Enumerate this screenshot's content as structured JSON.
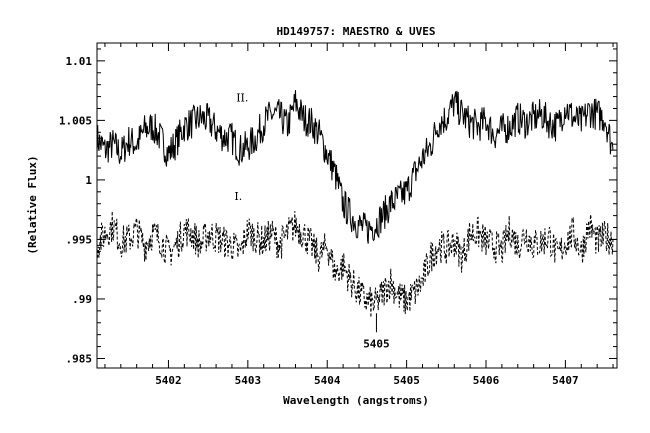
{
  "chart_data": {
    "type": "line",
    "title": "HD149757: MAESTRO & UVES",
    "xlabel": "Wavelength (angstroms)",
    "ylabel": "(Relative Flux)",
    "xlim": [
      5401.1,
      5407.65
    ],
    "ylim": [
      0.9842,
      1.0115
    ],
    "x_ticks": [
      5402,
      5403,
      5404,
      5405,
      5406,
      5407
    ],
    "x_tick_labels": [
      "5402",
      "5403",
      "5404",
      "5405",
      "5406",
      "5407"
    ],
    "y_ticks": [
      0.985,
      0.99,
      0.995,
      1.0,
      1.005,
      1.01
    ],
    "y_tick_labels": [
      ".985",
      ".99",
      ".995",
      "1",
      "1.005",
      "1.01"
    ],
    "grid": false,
    "series": [
      {
        "name": "II.",
        "style": "solid",
        "x": [
          5401.1,
          5401.2,
          5401.3,
          5401.4,
          5401.5,
          5401.6,
          5401.7,
          5401.8,
          5401.9,
          5402.0,
          5402.1,
          5402.2,
          5402.3,
          5402.4,
          5402.5,
          5402.6,
          5402.7,
          5402.8,
          5402.9,
          5403.0,
          5403.1,
          5403.2,
          5403.3,
          5403.4,
          5403.5,
          5403.6,
          5403.7,
          5403.8,
          5403.9,
          5404.0,
          5404.1,
          5404.2,
          5404.3,
          5404.4,
          5404.5,
          5404.6,
          5404.7,
          5404.8,
          5404.9,
          5405.0,
          5405.1,
          5405.2,
          5405.3,
          5405.4,
          5405.5,
          5405.6,
          5405.7,
          5405.8,
          5405.9,
          5406.0,
          5406.1,
          5406.2,
          5406.3,
          5406.4,
          5406.5,
          5406.6,
          5406.7,
          5406.8,
          5406.9,
          5407.0,
          5407.1,
          5407.2,
          5407.3,
          5407.4,
          5407.5,
          5407.6
        ],
        "y": [
          1.0035,
          1.0025,
          1.003,
          1.0022,
          1.0033,
          1.003,
          1.0042,
          1.0045,
          1.0035,
          1.0022,
          1.0032,
          1.0045,
          1.0048,
          1.0052,
          1.005,
          1.0042,
          1.0036,
          1.0035,
          1.0025,
          1.0028,
          1.0035,
          1.0048,
          1.0055,
          1.0054,
          1.0045,
          1.0065,
          1.0052,
          1.0048,
          1.0038,
          1.0022,
          1.0005,
          0.998,
          0.997,
          0.9962,
          0.9958,
          0.9962,
          0.997,
          0.998,
          0.9985,
          0.999,
          1.0005,
          1.0018,
          1.0028,
          1.0048,
          1.0052,
          1.0065,
          1.0055,
          1.0048,
          1.0045,
          1.005,
          1.0038,
          1.0042,
          1.0045,
          1.0052,
          1.0048,
          1.0052,
          1.0055,
          1.0048,
          1.0045,
          1.0062,
          1.0052,
          1.0048,
          1.0058,
          1.0055,
          1.0052,
          1.0025
        ]
      },
      {
        "name": "I.",
        "style": "dashed",
        "x": [
          5401.1,
          5401.2,
          5401.3,
          5401.4,
          5401.5,
          5401.6,
          5401.7,
          5401.8,
          5401.9,
          5402.0,
          5402.1,
          5402.2,
          5402.3,
          5402.4,
          5402.5,
          5402.6,
          5402.7,
          5402.8,
          5402.9,
          5403.0,
          5403.1,
          5403.2,
          5403.3,
          5403.4,
          5403.5,
          5403.6,
          5403.7,
          5403.8,
          5403.9,
          5404.0,
          5404.1,
          5404.2,
          5404.3,
          5404.4,
          5404.5,
          5404.6,
          5404.7,
          5404.8,
          5404.9,
          5405.0,
          5405.1,
          5405.2,
          5405.3,
          5405.4,
          5405.5,
          5405.6,
          5405.7,
          5405.8,
          5405.9,
          5406.0,
          5406.1,
          5406.2,
          5406.3,
          5406.4,
          5406.5,
          5406.6,
          5406.7,
          5406.8,
          5406.9,
          5407.0,
          5407.1,
          5407.2,
          5407.3,
          5407.4,
          5407.5,
          5407.6
        ],
        "y": [
          0.9945,
          0.9955,
          0.9962,
          0.9948,
          0.995,
          0.9958,
          0.9945,
          0.9955,
          0.995,
          0.9938,
          0.9945,
          0.9958,
          0.9955,
          0.9945,
          0.9955,
          0.9952,
          0.9948,
          0.9945,
          0.9938,
          0.9958,
          0.9952,
          0.9948,
          0.9955,
          0.9945,
          0.9955,
          0.9962,
          0.9955,
          0.9945,
          0.9935,
          0.9945,
          0.9922,
          0.9928,
          0.9915,
          0.9905,
          0.9898,
          0.9895,
          0.9905,
          0.9915,
          0.9902,
          0.9898,
          0.9905,
          0.9915,
          0.9935,
          0.9945,
          0.9942,
          0.9948,
          0.9935,
          0.9955,
          0.9955,
          0.9948,
          0.9945,
          0.994,
          0.9958,
          0.9945,
          0.9955,
          0.9945,
          0.9948,
          0.9952,
          0.9935,
          0.9948,
          0.9955,
          0.994,
          0.9962,
          0.9948,
          0.9952,
          0.995
        ]
      }
    ],
    "annotations": [
      {
        "text": "5405",
        "x": 5404.62,
        "y": 0.9866,
        "kind": "wavelength-marker"
      },
      {
        "text": "II.",
        "x": 5402.93,
        "y": 1.0066,
        "kind": "series-label"
      },
      {
        "text": "I.",
        "x": 5402.88,
        "y": 0.9983,
        "kind": "series-label"
      }
    ]
  }
}
